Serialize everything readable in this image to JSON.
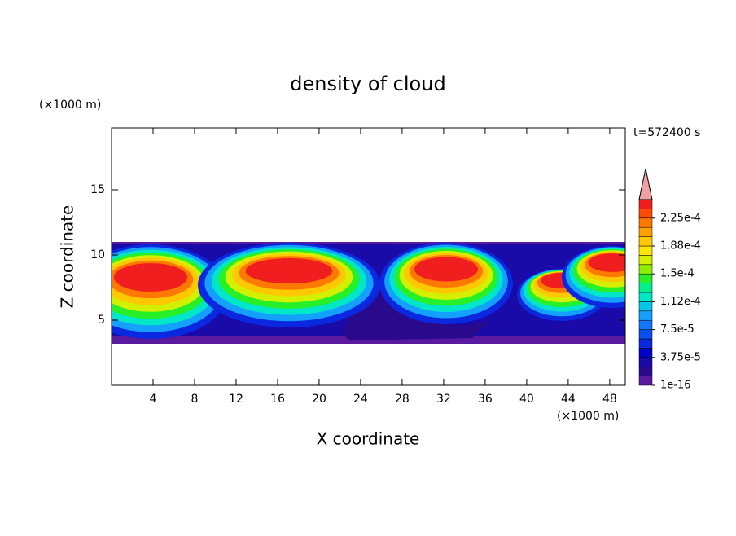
{
  "chart_data": {
    "type": "contour",
    "title": "density of cloud",
    "time_label": "t=572400 s",
    "x_label": "X coordinate",
    "y_label": "Z coordinate",
    "x_unit": "(×1000 m)",
    "y_unit": "(×1000 m)",
    "xlim": [
      0,
      49.5
    ],
    "xticks": [
      4,
      8,
      12,
      16,
      20,
      24,
      28,
      32,
      36,
      40,
      44,
      48
    ],
    "ylim": [
      0,
      19.75
    ],
    "yticks": [
      5,
      10,
      15
    ],
    "colorbar": {
      "lim": [
        0,
        0.00025
      ],
      "ticks": [
        {
          "value": 1e-16,
          "label": "1e-16"
        },
        {
          "value": 3.75e-05,
          "label": "3.75e-5"
        },
        {
          "value": 7.5e-05,
          "label": "7.5e-5"
        },
        {
          "value": 0.0001125,
          "label": "1.12e-4"
        },
        {
          "value": 0.00015,
          "label": "1.5e-4"
        },
        {
          "value": 0.0001875,
          "label": "1.88e-4"
        },
        {
          "value": 0.000225,
          "label": "2.25e-4"
        }
      ],
      "colors": [
        "#5a1aa0",
        "#2a0a8c",
        "#1a0aa8",
        "#0000c8",
        "#0a28e0",
        "#0a50f0",
        "#1478ff",
        "#14a0ff",
        "#00c8e6",
        "#00e6c8",
        "#00f08c",
        "#28f028",
        "#8cf000",
        "#d2f000",
        "#ffe600",
        "#ffc800",
        "#ffa000",
        "#ff7800",
        "#ff4b00",
        "#f01e1e"
      ],
      "extend_color": "#f0a0a0"
    }
  }
}
